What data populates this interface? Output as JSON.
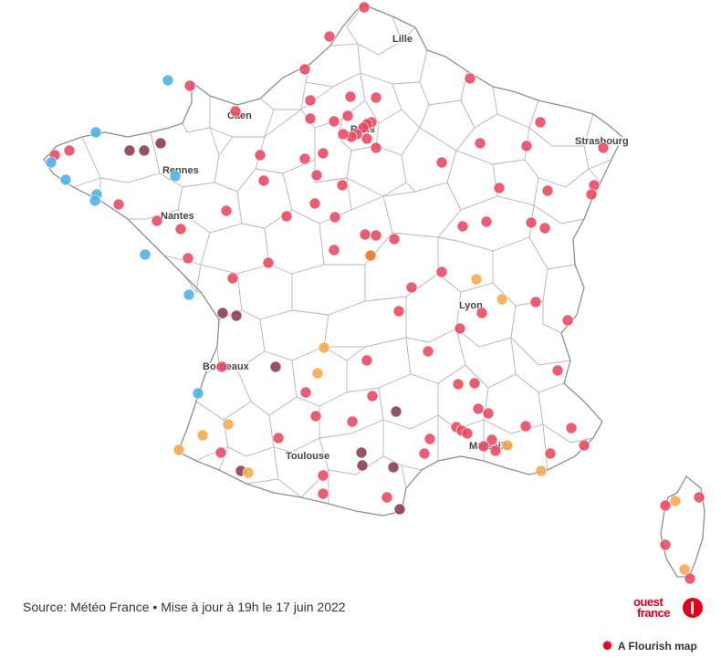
{
  "map": {
    "cities": [
      {
        "name": "Lille"
      },
      {
        "name": "Caen"
      },
      {
        "name": "Paris"
      },
      {
        "name": "Strasbourg"
      },
      {
        "name": "Rennes"
      },
      {
        "name": "Nantes"
      },
      {
        "name": "Lyon"
      },
      {
        "name": "Bordeaux"
      },
      {
        "name": "Toulouse"
      },
      {
        "name": "Marseille"
      }
    ],
    "colors": {
      "red": "#e8475f",
      "dark_red": "#8b3a4a",
      "orange": "#f6a84c",
      "deep_orange": "#f07020",
      "blue": "#4ab0e0",
      "border": "#b8b8b8",
      "outline": "#8f8f8f"
    }
  },
  "footer": {
    "source": "Source: Météo France • Mise à jour à 19h le 17 juin 2022",
    "logo_line1": "ouest",
    "logo_line2": "france",
    "flourish_label": "A Flourish map"
  }
}
